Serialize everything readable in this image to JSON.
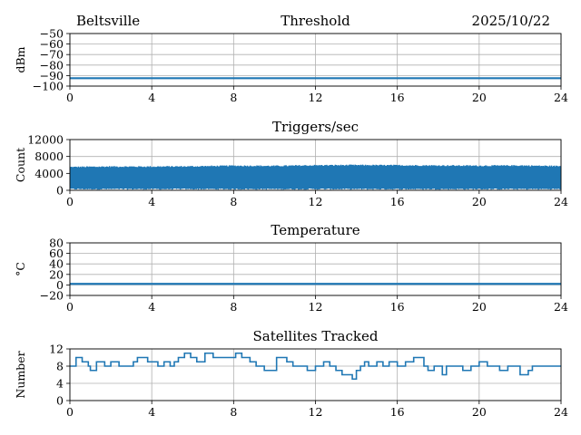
{
  "header": {
    "location": "Beltsville",
    "date": "2025/10/22"
  },
  "line_color": "#1f77b4",
  "chart_data": [
    {
      "type": "line",
      "title": "Threshold",
      "ylabel": "dBm",
      "xlabel": "",
      "xlim": [
        0,
        24
      ],
      "ylim": [
        -100,
        -50
      ],
      "grid": true,
      "x_ticks": [
        0,
        4,
        8,
        12,
        16,
        20,
        24
      ],
      "x_tick_labels": [
        "0",
        "4",
        "8",
        "12",
        "16",
        "20",
        "24"
      ],
      "y_ticks": [
        -100,
        -90,
        -80,
        -70,
        -60,
        -50
      ],
      "y_tick_labels": [
        "−100",
        "−90",
        "−80",
        "−70",
        "−60",
        "−50"
      ],
      "series": [
        {
          "name": "Threshold",
          "x": [
            0,
            24
          ],
          "y": [
            -92.5,
            -92.5
          ]
        }
      ]
    },
    {
      "type": "area",
      "title": "Triggers/sec",
      "ylabel": "Count",
      "xlabel": "",
      "xlim": [
        0,
        24
      ],
      "ylim": [
        0,
        12000
      ],
      "grid": true,
      "x_ticks": [
        0,
        4,
        8,
        12,
        16,
        20,
        24
      ],
      "x_tick_labels": [
        "0",
        "4",
        "8",
        "12",
        "16",
        "20",
        "24"
      ],
      "y_ticks": [
        0,
        4000,
        8000,
        12000
      ],
      "y_tick_labels": [
        "0",
        "4000",
        "8000",
        "12000"
      ],
      "series": [
        {
          "name": "Triggers/sec",
          "x": [
            0,
            2,
            4,
            6,
            8,
            10,
            12,
            14,
            16,
            18,
            20,
            22,
            24
          ],
          "y_low": [
            300,
            300,
            300,
            300,
            300,
            300,
            300,
            300,
            300,
            300,
            300,
            300,
            300
          ],
          "y_high": [
            5500,
            5600,
            5600,
            5650,
            5800,
            5750,
            5900,
            5950,
            5900,
            5850,
            5800,
            5850,
            5700
          ]
        }
      ]
    },
    {
      "type": "line",
      "title": "Temperature",
      "ylabel": "°C",
      "xlabel": "",
      "xlim": [
        0,
        24
      ],
      "ylim": [
        -20,
        80
      ],
      "grid": true,
      "x_ticks": [
        0,
        4,
        8,
        12,
        16,
        20,
        24
      ],
      "x_tick_labels": [
        "0",
        "4",
        "8",
        "12",
        "16",
        "20",
        "24"
      ],
      "y_ticks": [
        -20,
        0,
        20,
        40,
        60,
        80
      ],
      "y_tick_labels": [
        "−20",
        "0",
        "20",
        "40",
        "60",
        "80"
      ],
      "series": [
        {
          "name": "Temperature",
          "x": [
            0,
            24
          ],
          "y": [
            2,
            2
          ]
        }
      ]
    },
    {
      "type": "line",
      "title": "Satellites Tracked",
      "ylabel": "Number",
      "xlabel": "",
      "xlim": [
        0,
        24
      ],
      "ylim": [
        0,
        12
      ],
      "grid": true,
      "x_ticks": [
        0,
        4,
        8,
        12,
        16,
        20,
        24
      ],
      "x_tick_labels": [
        "0",
        "4",
        "8",
        "12",
        "16",
        "20",
        "24"
      ],
      "y_ticks": [
        0,
        4,
        8,
        12
      ],
      "y_tick_labels": [
        "0",
        "4",
        "8",
        "12"
      ],
      "series": [
        {
          "name": "Satellites",
          "x": [
            0,
            0.3,
            0.6,
            0.9,
            1.0,
            1.3,
            1.7,
            2.0,
            2.4,
            3.1,
            3.3,
            3.8,
            4.3,
            4.6,
            4.9,
            5.1,
            5.3,
            5.6,
            5.9,
            6.2,
            6.6,
            7.0,
            7.4,
            7.8,
            8.1,
            8.4,
            8.8,
            9.1,
            9.5,
            10.1,
            10.6,
            10.9,
            11.3,
            11.6,
            12.0,
            12.4,
            12.7,
            13.0,
            13.3,
            13.6,
            13.8,
            14.0,
            14.2,
            14.4,
            14.6,
            15.0,
            15.3,
            15.6,
            16.0,
            16.4,
            16.8,
            17.3,
            17.5,
            17.8,
            18.2,
            18.4,
            18.8,
            19.2,
            19.6,
            20.0,
            20.4,
            20.7,
            21.0,
            21.4,
            21.8,
            22.0,
            22.4,
            22.6,
            22.8,
            23.1,
            23.5,
            24.0
          ],
          "y": [
            8,
            10,
            9,
            8,
            7,
            9,
            8,
            9,
            8,
            9,
            10,
            9,
            8,
            9,
            8,
            9,
            10,
            11,
            10,
            9,
            11,
            10,
            10,
            10,
            11,
            10,
            9,
            8,
            7,
            10,
            9,
            8,
            8,
            7,
            8,
            9,
            8,
            7,
            6,
            6,
            5,
            7,
            8,
            9,
            8,
            9,
            8,
            9,
            8,
            9,
            10,
            8,
            7,
            8,
            6,
            8,
            8,
            7,
            8,
            9,
            8,
            8,
            7,
            8,
            8,
            6,
            7,
            8,
            8,
            8,
            8,
            8
          ]
        }
      ]
    }
  ]
}
